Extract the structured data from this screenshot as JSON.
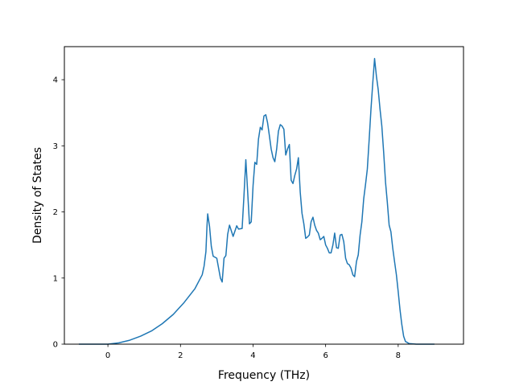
{
  "chart_data": {
    "type": "line",
    "xlabel": "Frequency (THz)",
    "ylabel": "Density of States",
    "xlim": [
      -1.2,
      9.8
    ],
    "ylim": [
      0,
      4.5
    ],
    "xticks": [
      "0",
      "2",
      "4",
      "6",
      "8"
    ],
    "yticks": [
      "0",
      "1",
      "2",
      "3",
      "4"
    ],
    "grid": false,
    "legend": "none",
    "line_color": "#1f77b4",
    "series": [
      {
        "x": [
          -0.8,
          -0.4,
          0.0,
          0.3,
          0.6,
          0.9,
          1.2,
          1.5,
          1.8,
          2.1,
          2.4,
          2.6,
          2.65,
          2.7,
          2.73,
          2.75,
          2.8,
          2.85,
          2.9,
          3.0,
          3.1,
          3.15,
          3.2,
          3.25,
          3.3,
          3.35,
          3.45,
          3.55,
          3.6,
          3.7,
          3.75,
          3.8,
          3.85,
          3.9,
          3.95,
          4.0,
          4.05,
          4.1,
          4.15,
          4.2,
          4.25,
          4.3,
          4.35,
          4.4,
          4.45,
          4.5,
          4.55,
          4.6,
          4.65,
          4.7,
          4.75,
          4.8,
          4.85,
          4.9,
          4.95,
          5.0,
          5.05,
          5.1,
          5.15,
          5.2,
          5.25,
          5.3,
          5.35,
          5.4,
          5.45,
          5.5,
          5.55,
          5.6,
          5.65,
          5.7,
          5.75,
          5.8,
          5.85,
          5.9,
          5.95,
          6.0,
          6.05,
          6.1,
          6.15,
          6.2,
          6.25,
          6.3,
          6.35,
          6.4,
          6.45,
          6.5,
          6.55,
          6.6,
          6.65,
          6.7,
          6.75,
          6.8,
          6.85,
          6.9,
          6.95,
          7.0,
          7.05,
          7.1,
          7.15,
          7.2,
          7.25,
          7.3,
          7.35,
          7.4,
          7.45,
          7.5,
          7.55,
          7.6,
          7.65,
          7.7,
          7.75,
          7.8,
          7.85,
          7.9,
          7.95,
          8.0,
          8.05,
          8.1,
          8.15,
          8.2,
          8.3,
          8.5,
          9.0
        ],
        "y": [
          0.0,
          0.0,
          0.0,
          0.02,
          0.06,
          0.12,
          0.2,
          0.31,
          0.45,
          0.63,
          0.84,
          1.05,
          1.18,
          1.4,
          1.78,
          1.97,
          1.78,
          1.48,
          1.33,
          1.3,
          1.0,
          0.94,
          1.3,
          1.34,
          1.66,
          1.8,
          1.63,
          1.79,
          1.74,
          1.75,
          2.25,
          2.79,
          2.32,
          1.82,
          1.85,
          2.4,
          2.75,
          2.72,
          3.1,
          3.28,
          3.24,
          3.45,
          3.47,
          3.35,
          3.15,
          2.95,
          2.82,
          2.76,
          2.95,
          3.22,
          3.32,
          3.3,
          3.25,
          2.86,
          2.95,
          3.02,
          2.48,
          2.43,
          2.55,
          2.65,
          2.82,
          2.3,
          1.98,
          1.82,
          1.6,
          1.62,
          1.65,
          1.85,
          1.92,
          1.8,
          1.72,
          1.68,
          1.58,
          1.6,
          1.63,
          1.5,
          1.45,
          1.38,
          1.38,
          1.5,
          1.68,
          1.46,
          1.45,
          1.65,
          1.66,
          1.55,
          1.3,
          1.22,
          1.2,
          1.15,
          1.05,
          1.02,
          1.25,
          1.35,
          1.65,
          1.85,
          2.2,
          2.42,
          2.65,
          3.1,
          3.55,
          3.96,
          4.32,
          4.05,
          3.85,
          3.55,
          3.3,
          2.9,
          2.45,
          2.15,
          1.8,
          1.7,
          1.45,
          1.25,
          1.05,
          0.8,
          0.52,
          0.3,
          0.12,
          0.04,
          0.01,
          0.0,
          0.0
        ]
      }
    ]
  }
}
